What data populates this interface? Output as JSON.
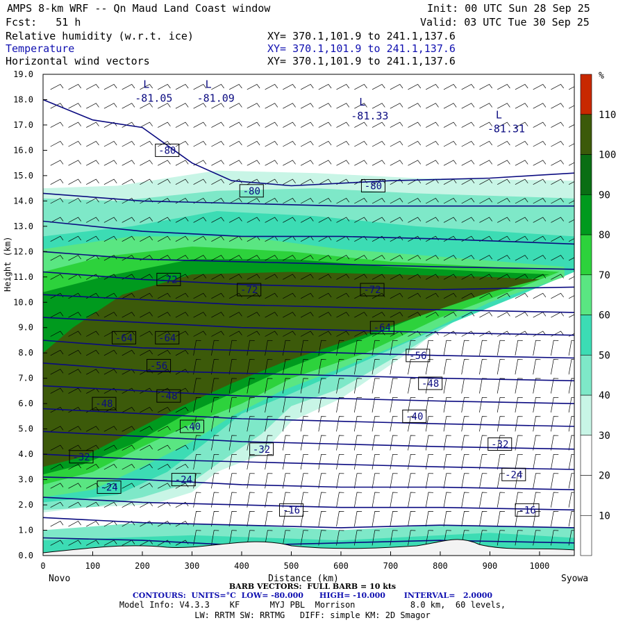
{
  "header": {
    "title": "AMPS 8-km WRF -- Qn Maud Land Coast window",
    "init": "Init: 00 UTC Sun 28 Sep 25",
    "fcst": "Fcst:   51 h",
    "valid": "Valid: 03 UTC Tue 30 Sep 25",
    "field1": "Relative humidity (w.r.t. ice)",
    "field2": "Temperature",
    "field3": "Horizontal wind vectors",
    "xy1": "XY= 370.1,101.9 to 241.1,137.6",
    "xy2": "XY= 370.1,101.9 to 241.1,137.6",
    "xy3": "XY= 370.1,101.9 to 241.1,137.6"
  },
  "footer": {
    "barb": "BARB VECTORS:  FULL BARB = 10 kts",
    "contours": "CONTOURS:  UNITS=°C  LOW= -80.000      HIGH= -10.000       INTERVAL=   2.0000",
    "model": "Model Info: V4.3.3    KF      MYJ PBL  Morrison           8.0 km,  60 levels,",
    "model2": "LW: RRTM SW: RRTMG   DIFF: simple KM: 2D Smagor"
  },
  "chart_data": {
    "type": "heatmap",
    "xlabel": "Distance (km)",
    "ylabel": "Height (km)",
    "xlim": [
      0,
      1070
    ],
    "ylim": [
      0,
      19
    ],
    "x_ticks": [
      0,
      100,
      200,
      300,
      400,
      500,
      600,
      700,
      800,
      900,
      1000
    ],
    "y_ticks": [
      "0.0",
      "1.0",
      "2.0",
      "3.0",
      "4.0",
      "5.0",
      "6.0",
      "7.0",
      "8.0",
      "9.0",
      "10.0",
      "11.0",
      "12.0",
      "13.0",
      "14.0",
      "15.0",
      "16.0",
      "17.0",
      "18.0",
      "19.0"
    ],
    "start_label": "Novo",
    "end_label": "Syowa",
    "colorbar": {
      "unit": "%",
      "labels": [
        "10",
        "20",
        "30",
        "40",
        "50",
        "60",
        "70",
        "80",
        "90",
        "100",
        "110"
      ],
      "colors": [
        "#ffffff",
        "#ffffff",
        "#ffffff",
        "#c8f5e6",
        "#7ee8c8",
        "#3cdcb4",
        "#5ae682",
        "#2dd23c",
        "#009a1e",
        "#0a6e14",
        "#3c5a0a",
        "#c82800"
      ]
    },
    "temperature_labels": [
      {
        "x": 250,
        "y": 16.0,
        "t": "-80"
      },
      {
        "x": 420,
        "y": 14.4,
        "t": "-80"
      },
      {
        "x": 665,
        "y": 14.6,
        "t": "-80"
      },
      {
        "x": 253,
        "y": 10.9,
        "t": "-72"
      },
      {
        "x": 415,
        "y": 10.5,
        "t": "-72"
      },
      {
        "x": 663,
        "y": 10.5,
        "t": "-72"
      },
      {
        "x": 163,
        "y": 8.6,
        "t": "-64"
      },
      {
        "x": 250,
        "y": 8.6,
        "t": "-64"
      },
      {
        "x": 683,
        "y": 9.0,
        "t": "-64"
      },
      {
        "x": 233,
        "y": 7.5,
        "t": "-56"
      },
      {
        "x": 755,
        "y": 7.9,
        "t": "-56"
      },
      {
        "x": 123,
        "y": 6.0,
        "t": "-48"
      },
      {
        "x": 253,
        "y": 6.3,
        "t": "-48"
      },
      {
        "x": 780,
        "y": 6.8,
        "t": "-48"
      },
      {
        "x": 300,
        "y": 5.1,
        "t": "-40"
      },
      {
        "x": 748,
        "y": 5.5,
        "t": "-40"
      },
      {
        "x": 77,
        "y": 3.9,
        "t": "-32"
      },
      {
        "x": 440,
        "y": 4.2,
        "t": "-32"
      },
      {
        "x": 920,
        "y": 4.4,
        "t": "-32"
      },
      {
        "x": 133,
        "y": 2.7,
        "t": "-24"
      },
      {
        "x": 283,
        "y": 3.0,
        "t": "-24"
      },
      {
        "x": 948,
        "y": 3.2,
        "t": "-24"
      },
      {
        "x": 500,
        "y": 1.8,
        "t": "-16"
      },
      {
        "x": 975,
        "y": 1.8,
        "t": "-16"
      }
    ],
    "low_centers": [
      {
        "x": 185,
        "y": 18.3,
        "value": "-81.05"
      },
      {
        "x": 310,
        "y": 18.3,
        "value": "-81.09"
      },
      {
        "x": 620,
        "y": 17.6,
        "value": "-81.33"
      },
      {
        "x": 895,
        "y": 17.1,
        "value": "-81.31"
      }
    ],
    "low_symbol": "L"
  }
}
